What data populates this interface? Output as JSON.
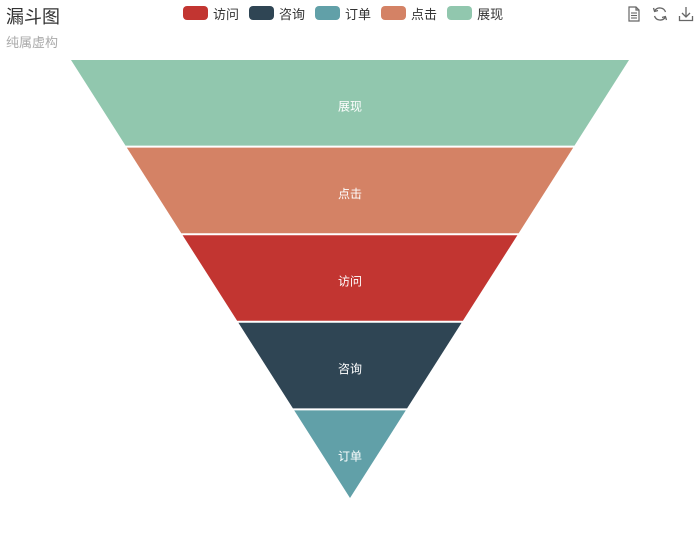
{
  "chart_data": {
    "type": "funnel",
    "title": "漏斗图",
    "subtitle": "纯属虚构",
    "legend": [
      "访问",
      "咨询",
      "订单",
      "点击",
      "展现"
    ],
    "legend_position": "top-center",
    "order": [
      "展现",
      "点击",
      "访问",
      "咨询",
      "订单"
    ],
    "values": {
      "展现": 100,
      "点击": 80,
      "访问": 60,
      "咨询": 40,
      "订单": 20
    },
    "max": 100,
    "min": 0,
    "colors": {
      "访问": "#c23531",
      "咨询": "#2f4554",
      "订单": "#61a0a8",
      "点击": "#d48265",
      "展现": "#91c7ae"
    }
  },
  "toolbox": {
    "icons": [
      "data-view-icon",
      "restore-icon",
      "save-image-icon"
    ]
  }
}
